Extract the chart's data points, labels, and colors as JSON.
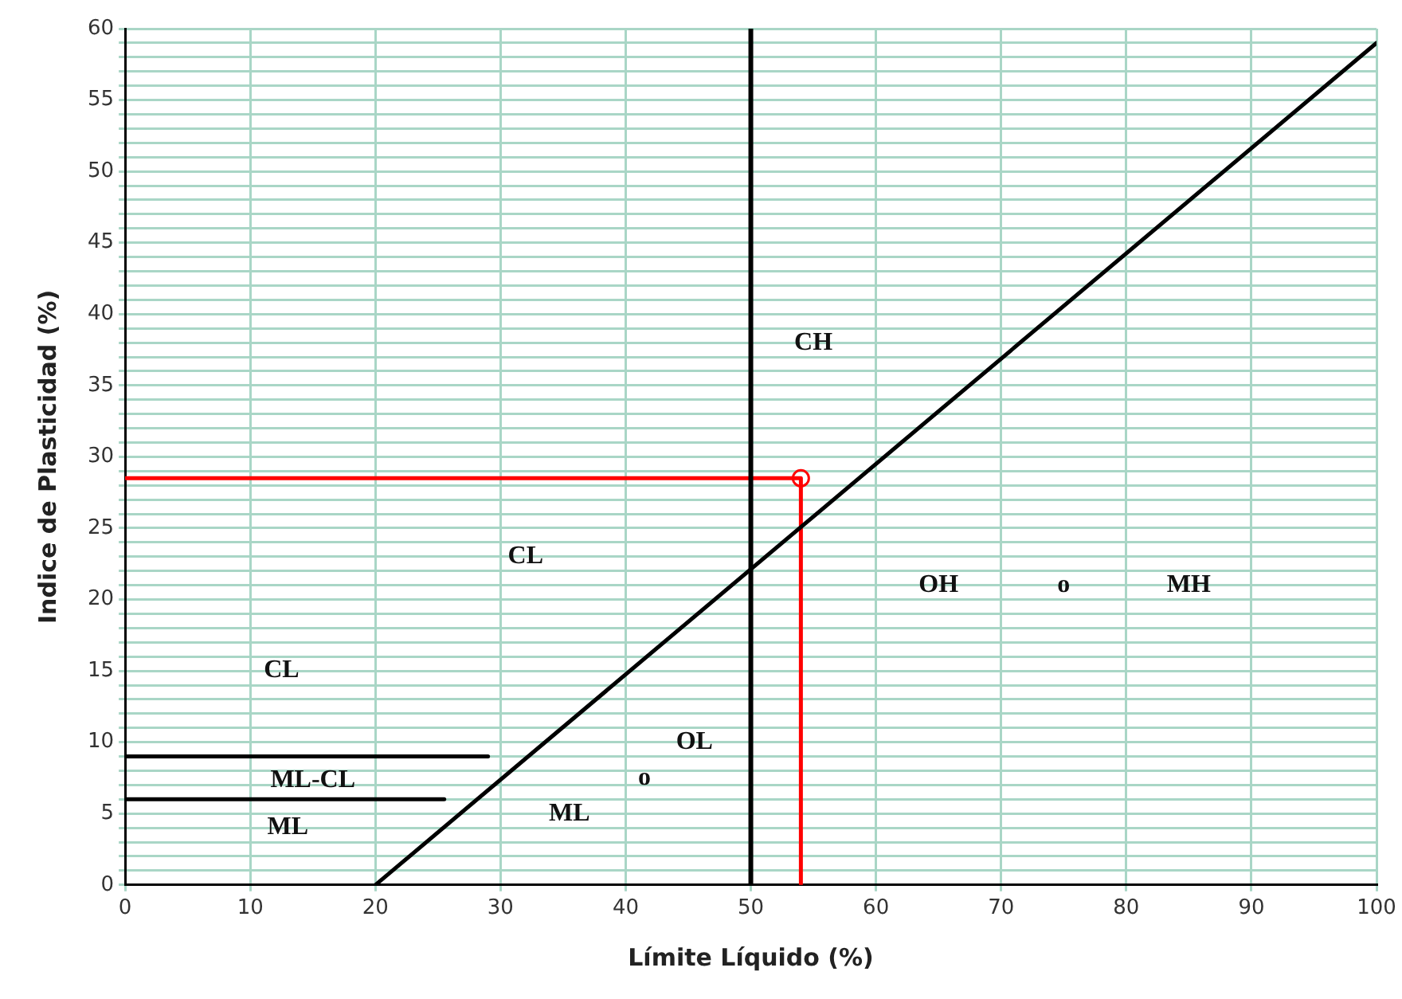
{
  "chart_data": {
    "type": "line",
    "xlabel": "Límite Líquido (%)",
    "ylabel": "Indice de Plasticidad (%)",
    "xlim": [
      0,
      100
    ],
    "xticks": [
      0,
      10,
      20,
      30,
      40,
      50,
      60,
      70,
      80,
      90,
      100
    ],
    "ylim": [
      0,
      60
    ],
    "yticks": [
      0,
      {
        "value": 1,
        "label": null
      },
      {
        "value": 2,
        "label": null
      },
      {
        "value": 3,
        "label": null
      },
      {
        "value": 4,
        "label": null
      },
      5,
      {
        "value": 6,
        "label": null
      },
      {
        "value": 7,
        "label": null
      },
      {
        "value": 8,
        "label": null
      },
      {
        "value": 9,
        "label": null
      },
      10,
      {
        "value": 11,
        "label": null
      },
      {
        "value": 12,
        "label": null
      },
      {
        "value": 13,
        "label": null
      },
      {
        "value": 14,
        "label": null
      },
      15,
      {
        "value": 16,
        "label": null
      },
      {
        "value": 17,
        "label": null
      },
      {
        "value": 18,
        "label": null
      },
      {
        "value": 19,
        "label": null
      },
      20,
      {
        "value": 21,
        "label": null
      },
      {
        "value": 22,
        "label": null
      },
      {
        "value": 23,
        "label": null
      },
      {
        "value": 24,
        "label": null
      },
      25,
      {
        "value": 26,
        "label": null
      },
      {
        "value": 27,
        "label": null
      },
      {
        "value": 28,
        "label": null
      },
      {
        "value": 29,
        "label": null
      },
      30,
      {
        "value": 31,
        "label": null
      },
      {
        "value": 32,
        "label": null
      },
      {
        "value": 33,
        "label": null
      },
      {
        "value": 34,
        "label": null
      },
      35,
      {
        "value": 36,
        "label": null
      },
      {
        "value": 37,
        "label": null
      },
      {
        "value": 38,
        "label": null
      },
      {
        "value": 39,
        "label": null
      },
      40,
      {
        "value": 41,
        "label": null
      },
      {
        "value": 42,
        "label": null
      },
      {
        "value": 43,
        "label": null
      },
      {
        "value": 44,
        "label": null
      },
      45,
      {
        "value": 46,
        "label": null
      },
      {
        "value": 47,
        "label": null
      },
      {
        "value": 48,
        "label": null
      },
      {
        "value": 49,
        "label": null
      },
      50,
      {
        "value": 51,
        "label": null
      },
      {
        "value": 52,
        "label": null
      },
      {
        "value": 53,
        "label": null
      },
      {
        "value": 54,
        "label": null
      },
      55,
      {
        "value": 56,
        "label": null
      },
      {
        "value": 57,
        "label": null
      },
      {
        "value": 58,
        "label": null
      },
      {
        "value": 59,
        "label": null
      },
      60
    ],
    "grid": true,
    "legend": false,
    "series": [
      {
        "color": "#000000",
        "marker": "none",
        "x": [
          20,
          100
        ],
        "values": [
          0,
          59
        ]
      },
      {
        "color": "#000000",
        "marker": "none",
        "x": [
          0,
          29
        ],
        "values": [
          9,
          9
        ]
      },
      {
        "color": "#000000",
        "marker": "none",
        "x": [
          0,
          25.5
        ],
        "values": [
          6,
          6
        ]
      },
      {
        "color": "#ff0000",
        "marker": "none",
        "x": [
          0,
          54,
          54
        ],
        "values": [
          28.5,
          28.5,
          0
        ]
      },
      {
        "type": "scatter",
        "color": "#ff0000",
        "marker": "circle",
        "x": [
          54
        ],
        "values": [
          28.5
        ]
      }
    ],
    "ref_lines": [
      {
        "axis": "x",
        "value": 50,
        "color": "#000000"
      }
    ],
    "annotations": [
      "CH",
      "CL",
      "CL",
      "ML-CL",
      "ML",
      "ML",
      "o",
      "OL",
      "OH",
      "o",
      "MH"
    ]
  }
}
